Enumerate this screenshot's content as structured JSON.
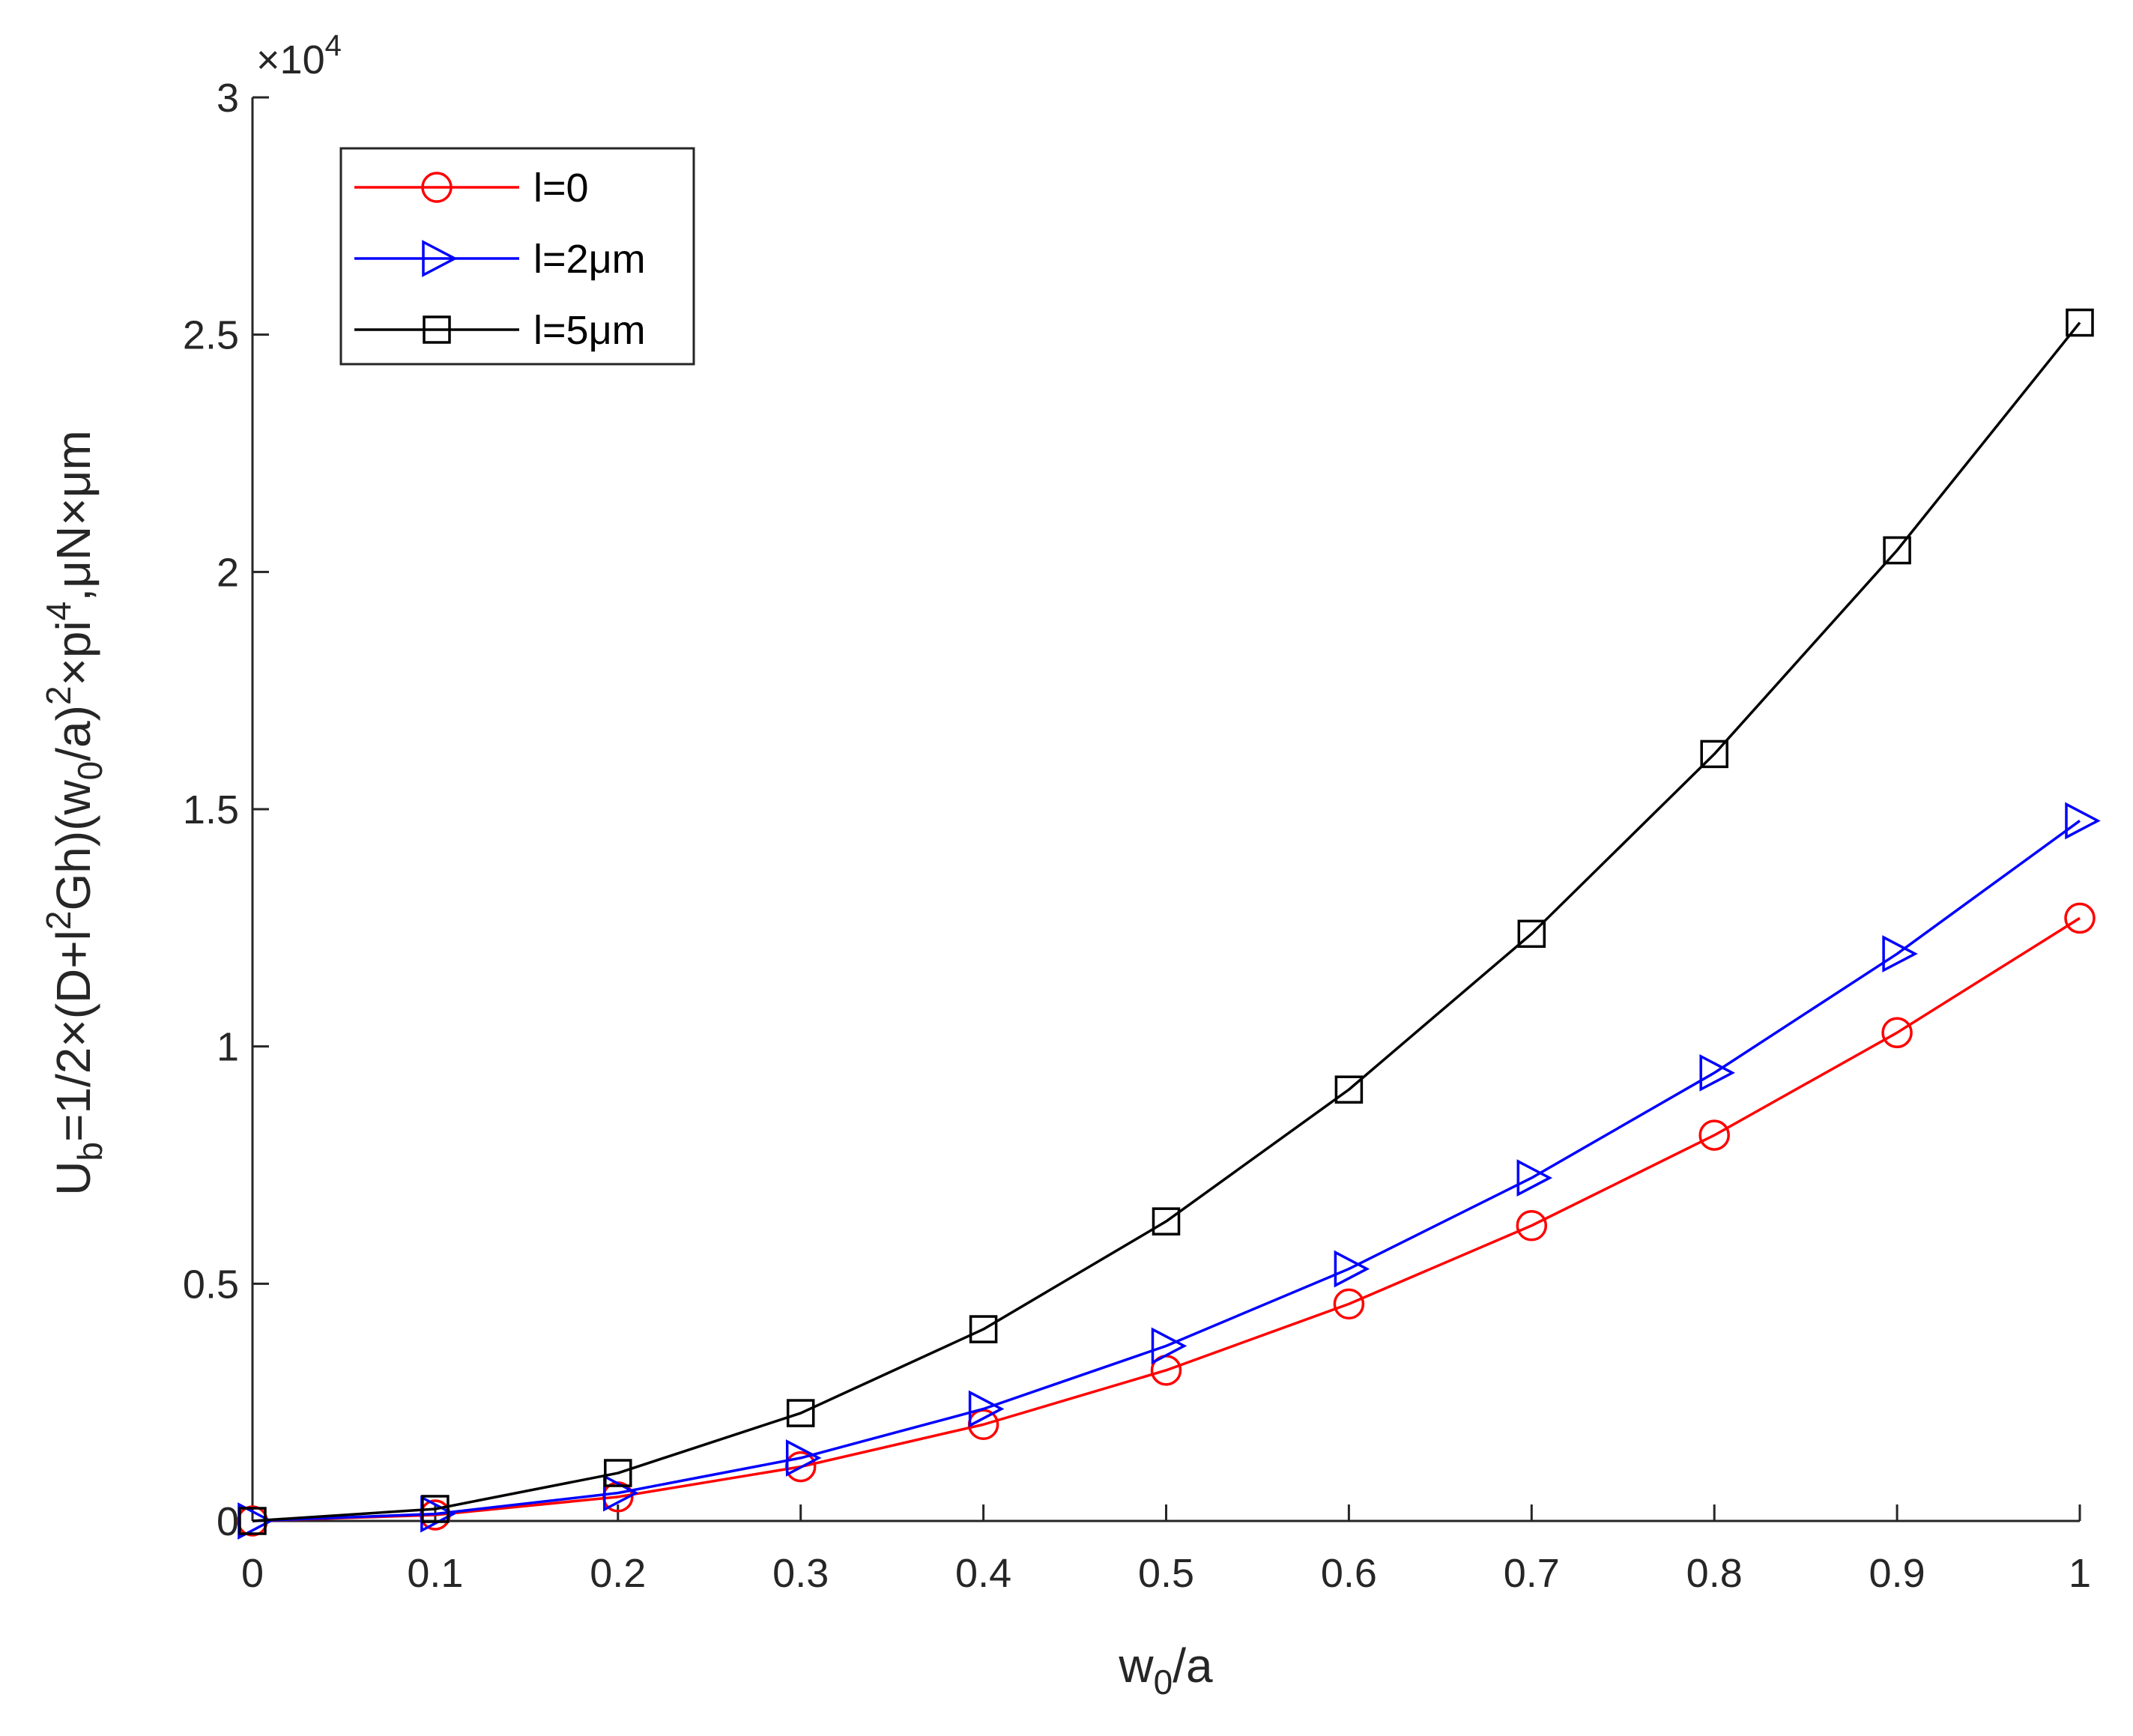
{
  "chart_data": {
    "type": "line",
    "title": "",
    "x": [
      0,
      0.1,
      0.2,
      0.3,
      0.4,
      0.5,
      0.6,
      0.7,
      0.8,
      0.9,
      1
    ],
    "xlim": [
      0,
      1
    ],
    "ylim": [
      0,
      30000
    ],
    "x_ticks": [
      "0",
      "0.1",
      "0.2",
      "0.3",
      "0.4",
      "0.5",
      "0.6",
      "0.7",
      "0.8",
      "0.9",
      "1"
    ],
    "y_ticks": [
      "0",
      "0.5",
      "1",
      "1.5",
      "2",
      "2.5",
      "3"
    ],
    "y_tick_values": [
      0,
      5000,
      10000,
      15000,
      20000,
      25000,
      30000
    ],
    "y_exponent": {
      "base": "×10",
      "power": "4"
    },
    "xlabel": {
      "main": "w",
      "sub": "0",
      "rest": "/a"
    },
    "ylabel": {
      "p1": "U",
      "p1_sub": "b",
      "p2": "=1/2×(D+l",
      "p2_sup": "2",
      "p3": "Gh)(w",
      "p3_sub": "0",
      "p4": "/a)",
      "p4_sup": "2",
      "p5": "×pi",
      "p5_sup": "4",
      "p6": ",μN×μm"
    },
    "legend_position": "top-left",
    "series": [
      {
        "name": "l=0",
        "color": "#ff0000",
        "marker": "circle",
        "values": [
          0,
          127,
          508,
          1143,
          2033,
          3176,
          4573,
          6225,
          8130,
          10290,
          12704
        ]
      },
      {
        "name": "l=2μm",
        "color": "#0000ff",
        "marker": "triangle-right",
        "values": [
          0,
          148,
          590,
          1328,
          2361,
          3689,
          5312,
          7230,
          9444,
          11952,
          14756
        ]
      },
      {
        "name": "l=5μm",
        "color": "#000000",
        "marker": "square",
        "values": [
          0,
          253,
          1010,
          2273,
          4041,
          6313,
          9091,
          12374,
          16162,
          20455,
          25254
        ]
      }
    ]
  }
}
